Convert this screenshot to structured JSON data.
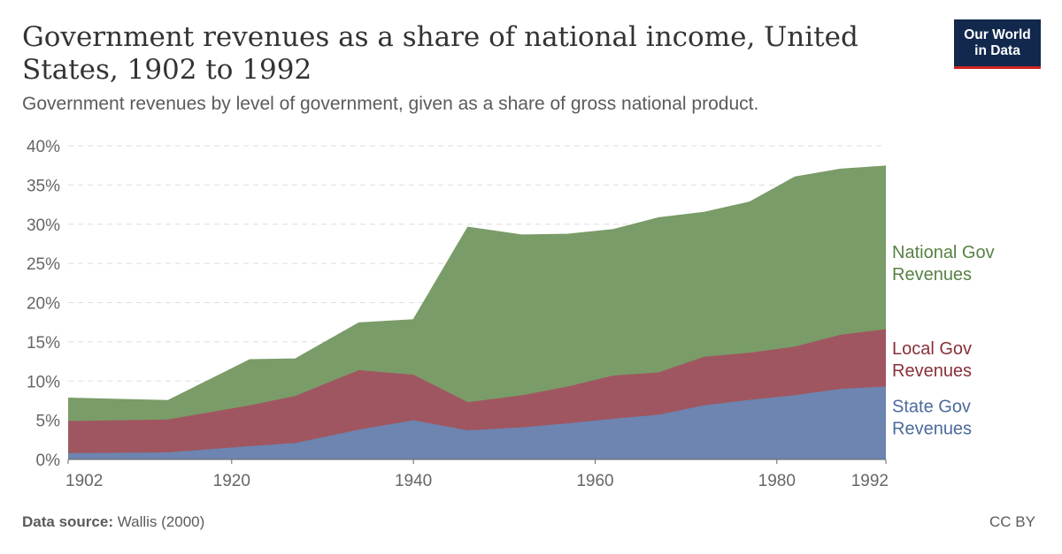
{
  "header": {
    "title": "Government revenues as a share of national income, United States, 1902 to 1992",
    "subtitle": "Government revenues by level of government, given as a share of gross national product.",
    "logo_line1": "Our World",
    "logo_line2": "in Data"
  },
  "footer": {
    "source_label": "Data source:",
    "source_value": "Wallis (2000)",
    "license": "CC BY"
  },
  "colors": {
    "state": "#6d85b0",
    "local": "#a05660",
    "national": "#7a9c68",
    "state_label": "#4c6a9c",
    "local_label": "#883039",
    "national_label": "#578145",
    "grid": "#dddddd"
  },
  "chart_data": {
    "type": "area",
    "stacked": true,
    "x": [
      1902,
      1913,
      1922,
      1927,
      1934,
      1940,
      1946,
      1952,
      1957,
      1962,
      1967,
      1972,
      1977,
      1982,
      1987,
      1992
    ],
    "xticks": [
      1902,
      1920,
      1940,
      1960,
      1980,
      1992
    ],
    "xtick_labels": [
      "1902",
      "1920",
      "1940",
      "1960",
      "1980",
      "1992"
    ],
    "ylim": [
      0,
      40
    ],
    "yticks": [
      0,
      5,
      10,
      15,
      20,
      25,
      30,
      35,
      40
    ],
    "ytick_labels": [
      "0%",
      "5%",
      "10%",
      "15%",
      "20%",
      "25%",
      "30%",
      "35%",
      "40%"
    ],
    "grid": "horizontal dashed",
    "series": [
      {
        "name": "State Gov Revenues",
        "label_lines": [
          "State Gov",
          "Revenues"
        ],
        "values": [
          0.8,
          0.9,
          1.7,
          2.1,
          3.8,
          5.0,
          3.7,
          4.1,
          4.6,
          5.2,
          5.7,
          6.9,
          7.6,
          8.2,
          9.0,
          9.3
        ]
      },
      {
        "name": "Local Gov Revenues",
        "label_lines": [
          "Local Gov",
          "Revenues"
        ],
        "values": [
          4.1,
          4.2,
          5.2,
          6.0,
          7.6,
          5.8,
          3.6,
          4.1,
          4.7,
          5.5,
          5.4,
          6.2,
          6.0,
          6.2,
          6.9,
          7.3
        ]
      },
      {
        "name": "National Gov Revenues",
        "label_lines": [
          "National Gov",
          "Revenues"
        ],
        "values": [
          2.9,
          2.4,
          5.8,
          4.7,
          6.0,
          7.0,
          22.3,
          20.4,
          19.4,
          18.6,
          19.7,
          18.4,
          19.2,
          21.6,
          21.1,
          20.8
        ]
      }
    ]
  }
}
